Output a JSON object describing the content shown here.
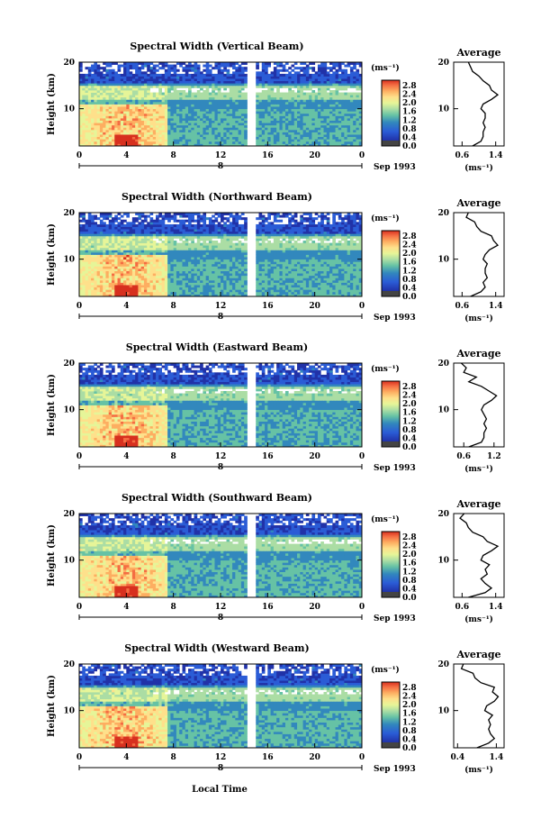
{
  "figure": {
    "x_axis_label": "Local Time",
    "date_label": "Sep 1993",
    "day_marker": "8"
  },
  "colorbar": {
    "unit": "(ms⁻¹)",
    "ticks": [
      "2.8",
      "2.4",
      "2.0",
      "1.6",
      "1.2",
      "0.8",
      "0.4",
      "0.0"
    ],
    "colors": [
      "#d7301f",
      "#f46d43",
      "#fdae61",
      "#fee08b",
      "#e6f598",
      "#abdda4",
      "#66c2a5",
      "#3288bd",
      "#2b5cd6",
      "#2132a8",
      "#17206e",
      "#444444"
    ]
  },
  "chart_data": [
    {
      "type": "heatmap",
      "title": "Spectral Width (Vertical Beam)",
      "ylabel": "Height (km)",
      "xticks": [
        "0",
        "4",
        "8",
        "12",
        "16",
        "20",
        "0"
      ],
      "xlim": [
        0,
        24
      ],
      "yticks": [
        "10",
        "20"
      ],
      "ylim": [
        2,
        20
      ],
      "data_gap_hours": [
        14.3,
        14.9
      ],
      "profile": {
        "title": "Average",
        "xlabel": "(ms⁻¹)",
        "xticks": [
          "0.6",
          "1.4"
        ],
        "xlim": [
          0.4,
          1.6
        ],
        "yticks": [
          "10",
          "20"
        ],
        "ylim": [
          2,
          20
        ],
        "heights": [
          2,
          3,
          4,
          5,
          6,
          7,
          8,
          9,
          10,
          11,
          12,
          13,
          14,
          15,
          16,
          17,
          18,
          19,
          20
        ],
        "values": [
          0.85,
          1.05,
          1.1,
          1.1,
          1.15,
          1.1,
          1.15,
          1.15,
          1.05,
          1.1,
          1.3,
          1.45,
          1.3,
          1.25,
          1.1,
          1.0,
          0.85,
          0.8,
          0.75
        ]
      }
    },
    {
      "type": "heatmap",
      "title": "Spectral Width (Northward Beam)",
      "ylabel": "Height (km)",
      "xticks": [
        "0",
        "4",
        "8",
        "12",
        "16",
        "20",
        "0"
      ],
      "xlim": [
        0,
        24
      ],
      "yticks": [
        "10",
        "20"
      ],
      "ylim": [
        2,
        20
      ],
      "data_gap_hours": [
        14.3,
        14.9
      ],
      "profile": {
        "title": "Average",
        "xlabel": "(ms⁻¹)",
        "xticks": [
          "0.6",
          "1.4"
        ],
        "xlim": [
          0.4,
          1.6
        ],
        "yticks": [
          "10",
          "20"
        ],
        "ylim": [
          2,
          20
        ],
        "heights": [
          2,
          3,
          4,
          5,
          6,
          7,
          8,
          9,
          10,
          11,
          12,
          13,
          14,
          15,
          16,
          17,
          18,
          19,
          20
        ],
        "values": [
          0.8,
          1.05,
          1.15,
          1.1,
          1.2,
          1.15,
          1.15,
          1.2,
          1.1,
          1.15,
          1.25,
          1.45,
          1.35,
          1.3,
          1.05,
          0.95,
          0.9,
          0.7,
          0.75
        ]
      }
    },
    {
      "type": "heatmap",
      "title": "Spectral Width (Eastward Beam)",
      "ylabel": "Height (km)",
      "xticks": [
        "0",
        "4",
        "8",
        "12",
        "16",
        "20",
        "0"
      ],
      "xlim": [
        0,
        24
      ],
      "yticks": [
        "10",
        "20"
      ],
      "ylim": [
        2,
        20
      ],
      "data_gap_hours": [
        14.3,
        14.9
      ],
      "profile": {
        "title": "Average",
        "xlabel": "(ms⁻¹)",
        "xticks": [
          "0.6",
          "1.2"
        ],
        "xlim": [
          0.4,
          1.4
        ],
        "yticks": [
          "10",
          "20"
        ],
        "ylim": [
          2,
          20
        ],
        "heights": [
          2,
          3,
          4,
          5,
          6,
          7,
          8,
          9,
          10,
          11,
          12,
          13,
          14,
          15,
          16,
          17,
          18,
          19,
          20
        ],
        "values": [
          0.7,
          0.95,
          1.0,
          1.0,
          1.05,
          1.0,
          1.05,
          1.0,
          0.95,
          1.0,
          1.15,
          1.25,
          1.1,
          0.95,
          0.7,
          0.85,
          0.6,
          0.65,
          0.55
        ]
      }
    },
    {
      "type": "heatmap",
      "title": "Spectral Width (Southward Beam)",
      "ylabel": "Height (km)",
      "xticks": [
        "0",
        "4",
        "8",
        "12",
        "16",
        "20",
        "0"
      ],
      "xlim": [
        0,
        24
      ],
      "yticks": [
        "10",
        "20"
      ],
      "ylim": [
        2,
        20
      ],
      "data_gap_hours": [
        14.3,
        14.9
      ],
      "profile": {
        "title": "Average",
        "xlabel": "(ms⁻¹)",
        "xticks": [
          "0.6",
          "1.4"
        ],
        "xlim": [
          0.4,
          1.6
        ],
        "yticks": [
          "10",
          "20"
        ],
        "ylim": [
          2,
          20
        ],
        "heights": [
          2,
          3,
          4,
          5,
          6,
          7,
          8,
          9,
          10,
          11,
          12,
          13,
          14,
          15,
          16,
          17,
          18,
          19,
          20
        ],
        "values": [
          0.75,
          1.15,
          1.3,
          1.15,
          1.05,
          1.2,
          1.15,
          1.25,
          1.05,
          1.1,
          1.3,
          1.45,
          1.2,
          1.1,
          0.85,
          0.75,
          0.7,
          0.55,
          0.65
        ]
      }
    },
    {
      "type": "heatmap",
      "title": "Spectral Width (Westward Beam)",
      "ylabel": "Height (km)",
      "xticks": [
        "0",
        "4",
        "8",
        "12",
        "16",
        "20",
        "0"
      ],
      "xlim": [
        0,
        24
      ],
      "yticks": [
        "10",
        "20"
      ],
      "ylim": [
        2,
        20
      ],
      "data_gap_hours": [
        14.3,
        14.9
      ],
      "profile": {
        "title": "Average",
        "xlabel": "(ms⁻¹)",
        "xticks": [
          "0.4",
          "1.4"
        ],
        "xlim": [
          0.3,
          1.6
        ],
        "yticks": [
          "10",
          "20"
        ],
        "ylim": [
          2,
          20
        ],
        "heights": [
          2,
          3,
          4,
          5,
          6,
          7,
          8,
          9,
          10,
          11,
          12,
          13,
          14,
          15,
          16,
          17,
          18,
          19,
          20
        ],
        "values": [
          0.9,
          1.2,
          1.35,
          1.25,
          1.2,
          1.25,
          1.2,
          1.3,
          1.1,
          1.15,
          1.35,
          1.45,
          1.3,
          1.35,
          1.0,
          0.85,
          0.8,
          0.5,
          0.55
        ]
      }
    }
  ]
}
